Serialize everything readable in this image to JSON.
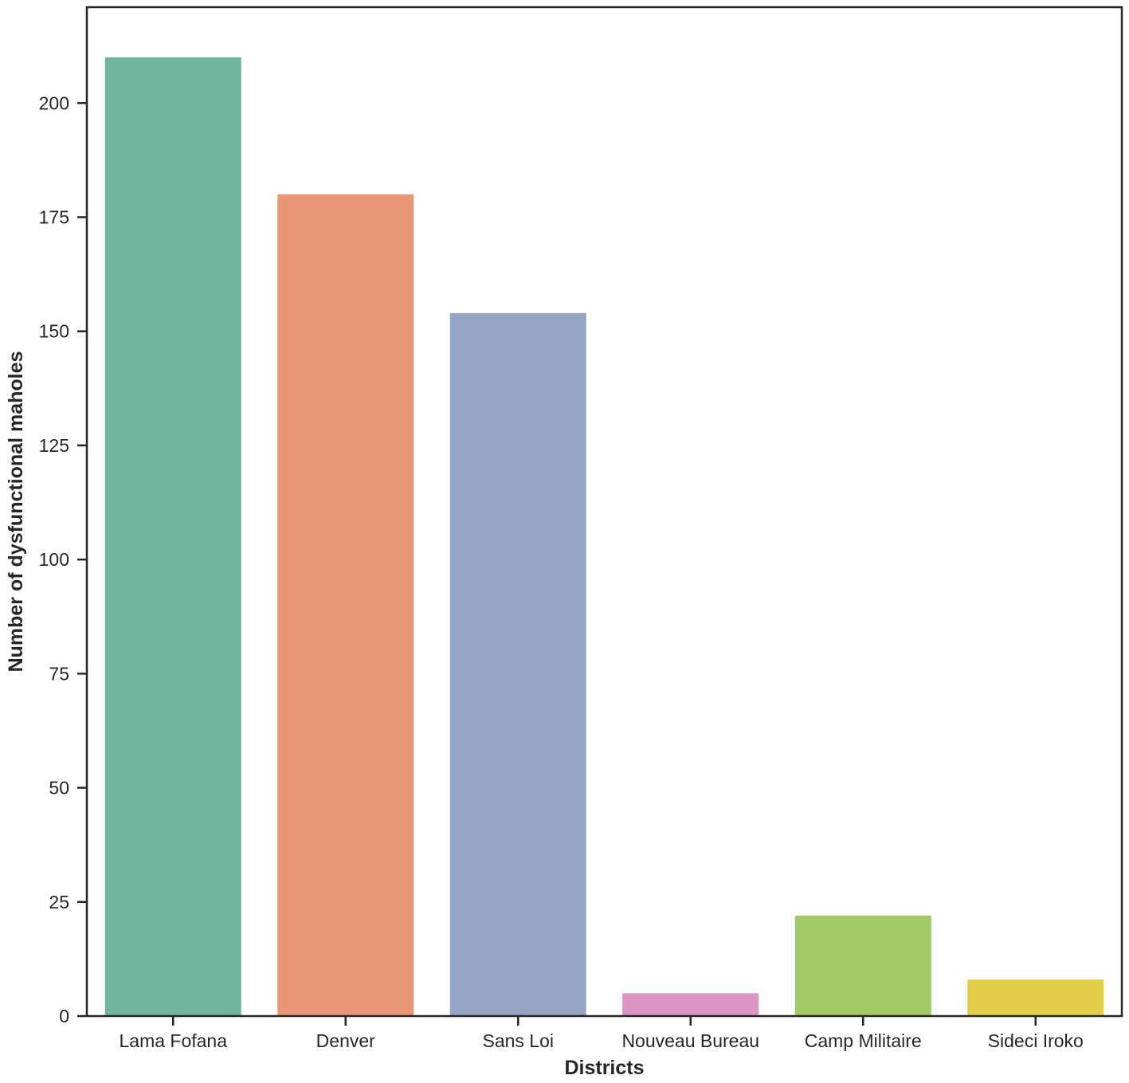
{
  "chart_data": {
    "type": "bar",
    "title": "",
    "xlabel": "Districts",
    "ylabel": "Number of dysfunctional maholes",
    "categories": [
      "Lama Fofana",
      "Denver",
      "Sans Loi",
      "Nouveau Bureau",
      "Camp Militaire",
      "Sideci Iroko"
    ],
    "values": [
      210,
      180,
      154,
      5,
      22,
      8
    ],
    "colors": [
      "#72b59f",
      "#e89676",
      "#96a5c4",
      "#dc94c2",
      "#a3c965",
      "#e4cd4b"
    ],
    "ylim": [
      0,
      221
    ],
    "yticks": [
      0,
      25,
      50,
      75,
      100,
      125,
      150,
      175,
      200
    ],
    "grid": false,
    "legend": "none"
  }
}
